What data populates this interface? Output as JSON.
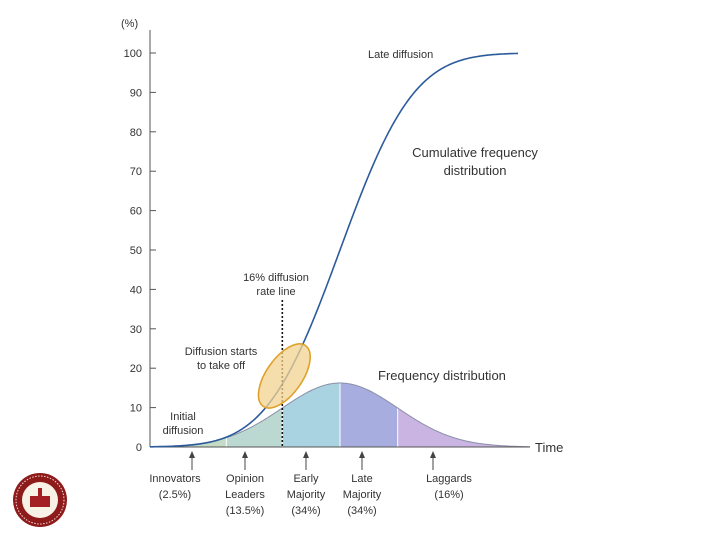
{
  "chart_data": {
    "type": "line",
    "y_unit": "(%)",
    "y_ticks": [
      "100",
      "90",
      "80",
      "70",
      "60",
      "50",
      "40",
      "30",
      "20",
      "10",
      "0"
    ],
    "ylim": [
      0,
      100
    ],
    "xlabel": "Time",
    "series": [
      {
        "name": "Cumulative frequency distribution"
      },
      {
        "name": "Frequency distribution"
      }
    ],
    "segments": [
      {
        "lines": [
          "Innovators",
          "(2.5%)"
        ],
        "share": 2.5,
        "color": "#c4dcc6"
      },
      {
        "lines": [
          "Opinion",
          "Leaders",
          "(13.5%)"
        ],
        "share": 13.5,
        "color": "#bcd9d1"
      },
      {
        "lines": [
          "Early",
          "Majority",
          "(34%)"
        ],
        "share": 34,
        "color": "#a9d3e1"
      },
      {
        "lines": [
          "Late",
          "Majority",
          "(34%)"
        ],
        "share": 34,
        "color": "#a7addf"
      },
      {
        "lines": [
          "Laggards",
          "(16%)"
        ],
        "share": 16,
        "color": "#c9b4e2"
      }
    ],
    "annotations": {
      "late_diffusion": "Late diffusion",
      "cumulative_label": [
        "Cumulative frequency",
        "distribution"
      ],
      "frequency_label": "Frequency distribution",
      "rate_line": [
        "16% diffusion",
        "rate line"
      ],
      "takeoff": [
        "Diffusion starts",
        "to take off"
      ],
      "initial": [
        "Initial",
        "diffusion"
      ]
    },
    "colors": {
      "curve": "#2c5b9c",
      "axis": "#555555",
      "ellipse_fill": "#f3d390",
      "ellipse_stroke": "#e0a12a"
    }
  }
}
